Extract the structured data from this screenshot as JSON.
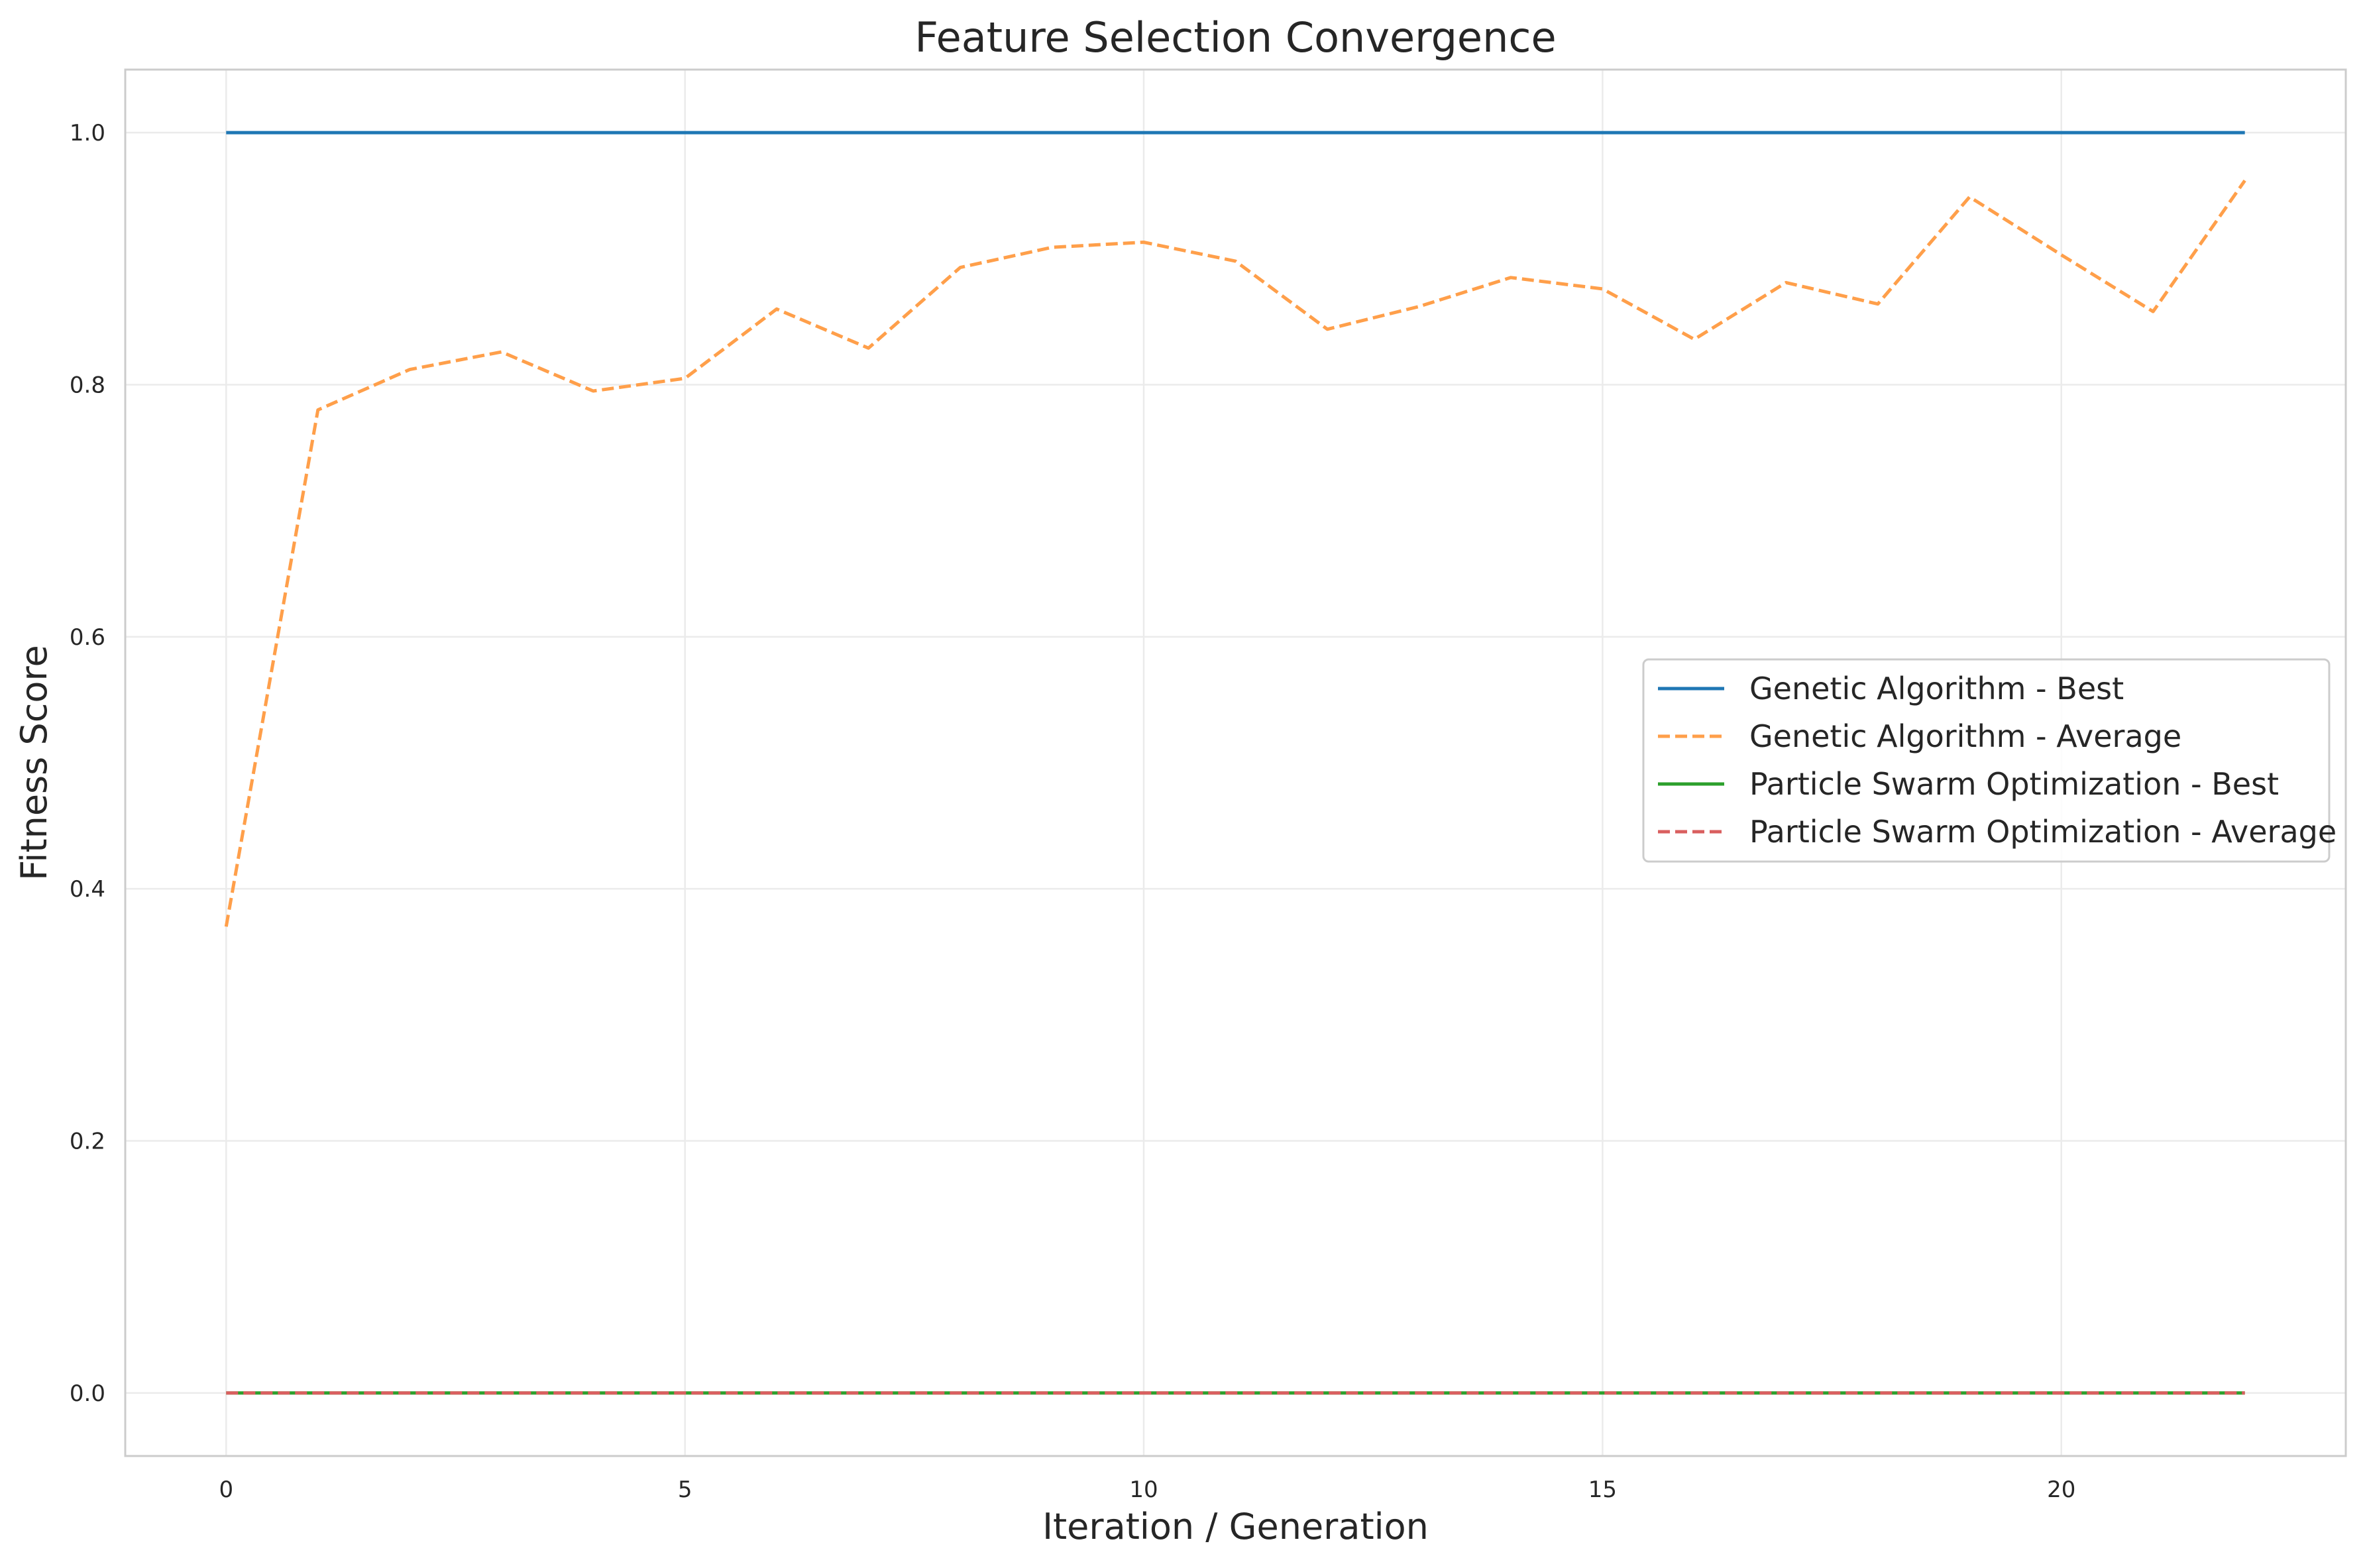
{
  "chart_data": {
    "type": "line",
    "title": "Feature Selection Convergence",
    "xlabel": "Iteration / Generation",
    "ylabel": "Fitness Score",
    "xlim": [
      -1.1,
      23.1
    ],
    "ylim": [
      -0.05,
      1.05
    ],
    "xticks": [
      0,
      5,
      10,
      15,
      20
    ],
    "yticks": [
      0.0,
      0.2,
      0.4,
      0.6,
      0.8,
      1.0
    ],
    "xtick_labels": [
      "0",
      "5",
      "10",
      "15",
      "20"
    ],
    "ytick_labels": [
      "0.0",
      "0.2",
      "0.4",
      "0.6",
      "0.8",
      "1.0"
    ],
    "grid": true,
    "legend_position": "center-right",
    "x": [
      0,
      1,
      2,
      3,
      4,
      5,
      6,
      7,
      8,
      9,
      10,
      11,
      12,
      13,
      14,
      15,
      16,
      17,
      18,
      19,
      20,
      21,
      22
    ],
    "series": [
      {
        "name": "Genetic Algorithm - Best",
        "color": "#1f77b4",
        "dash": "solid",
        "values": [
          1.0,
          1.0,
          1.0,
          1.0,
          1.0,
          1.0,
          1.0,
          1.0,
          1.0,
          1.0,
          1.0,
          1.0,
          1.0,
          1.0,
          1.0,
          1.0,
          1.0,
          1.0,
          1.0,
          1.0,
          1.0,
          1.0,
          1.0
        ]
      },
      {
        "name": "Genetic Algorithm - Average",
        "color": "#ff9f4a",
        "dash": "dashed",
        "values": [
          0.37,
          0.78,
          0.812,
          0.826,
          0.795,
          0.805,
          0.86,
          0.829,
          0.893,
          0.909,
          0.913,
          0.898,
          0.844,
          0.862,
          0.885,
          0.876,
          0.836,
          0.881,
          0.864,
          0.949,
          0.903,
          0.858,
          0.962
        ]
      },
      {
        "name": "Particle Swarm Optimization - Best",
        "color": "#2ca02c",
        "dash": "solid",
        "values": [
          0.0,
          0.0,
          0.0,
          0.0,
          0.0,
          0.0,
          0.0,
          0.0,
          0.0,
          0.0,
          0.0,
          0.0,
          0.0,
          0.0,
          0.0,
          0.0,
          0.0,
          0.0,
          0.0,
          0.0,
          0.0,
          0.0,
          0.0
        ]
      },
      {
        "name": "Particle Swarm Optimization - Average",
        "color": "#d95f5f",
        "dash": "dashed",
        "values": [
          0.0,
          0.0,
          0.0,
          0.0,
          0.0,
          0.0,
          0.0,
          0.0,
          0.0,
          0.0,
          0.0,
          0.0,
          0.0,
          0.0,
          0.0,
          0.0,
          0.0,
          0.0,
          0.0,
          0.0,
          0.0,
          0.0,
          0.0
        ]
      }
    ]
  }
}
